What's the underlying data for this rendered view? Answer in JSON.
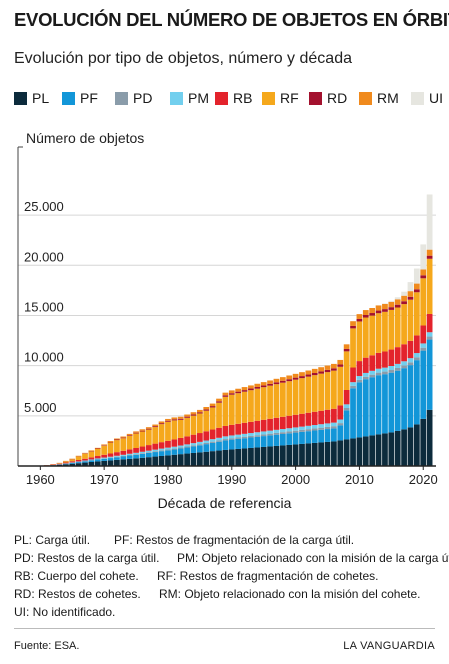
{
  "title": "EVOLUCIÓN DEL NÚMERO DE OBJETOS EN ÓRBITA",
  "subtitle": "Evolución por tipo de objetos, número y década",
  "source": "Fuente: ESA.",
  "brand": "LA VANGUARDIA",
  "notes": [
    [
      {
        "code": "PL:",
        "text": "Carga útil."
      },
      {
        "code": "PF:",
        "text": "Restos de fragmentación de la carga útil."
      }
    ],
    [
      {
        "code": "PD:",
        "text": "Restos de la carga útil."
      },
      {
        "code": "PM:",
        "text": "Objeto relacionado con la misión de la carga útil."
      }
    ],
    [
      {
        "code": "RB:",
        "text": "Cuerpo del cohete."
      },
      {
        "code": "RF:",
        "text": "Restos de fragmentación de cohetes."
      }
    ],
    [
      {
        "code": "RD:",
        "text": "Restos de cohetes."
      },
      {
        "code": "RM:",
        "text": "Objeto relacionado con la misión del cohete."
      }
    ],
    [
      {
        "code": "UI:",
        "text": "No identificado."
      }
    ]
  ],
  "chart_data": {
    "type": "bar",
    "stacked": true,
    "title": "",
    "ylabel": "Número de objetos",
    "xlabel": "Década de referencia",
    "x": [
      1958,
      1959,
      1960,
      1961,
      1962,
      1963,
      1964,
      1965,
      1966,
      1967,
      1968,
      1969,
      1970,
      1971,
      1972,
      1973,
      1974,
      1975,
      1976,
      1977,
      1978,
      1979,
      1980,
      1981,
      1982,
      1983,
      1984,
      1985,
      1986,
      1987,
      1988,
      1989,
      1990,
      1991,
      1992,
      1993,
      1994,
      1995,
      1996,
      1997,
      1998,
      1999,
      2000,
      2001,
      2002,
      2003,
      2004,
      2005,
      2006,
      2007,
      2008,
      2009,
      2010,
      2011,
      2012,
      2013,
      2014,
      2015,
      2016,
      2017,
      2018,
      2019,
      2020,
      2021
    ],
    "xticks": [
      1960,
      1970,
      1980,
      1990,
      2000,
      2010,
      2020
    ],
    "xlim": [
      1956.5,
      2022
    ],
    "ylim": [
      0,
      29000
    ],
    "yticks": [
      5000,
      10000,
      15000,
      20000,
      25000
    ],
    "ytick_labels": [
      "5.000",
      "10.000",
      "15.000",
      "20.000",
      "25.000"
    ],
    "legend_position": "top",
    "series": [
      {
        "name": "PL",
        "color": "#0c2b3c",
        "values": [
          5,
          10,
          20,
          50,
          80,
          120,
          170,
          220,
          280,
          340,
          400,
          460,
          510,
          560,
          610,
          660,
          710,
          760,
          820,
          880,
          940,
          1000,
          1060,
          1120,
          1180,
          1240,
          1300,
          1360,
          1420,
          1480,
          1540,
          1600,
          1650,
          1700,
          1750,
          1800,
          1850,
          1900,
          1950,
          2000,
          2050,
          2100,
          2150,
          2200,
          2250,
          2300,
          2350,
          2400,
          2450,
          2550,
          2650,
          2750,
          2850,
          2950,
          3050,
          3150,
          3250,
          3350,
          3500,
          3650,
          3850,
          4150,
          4700,
          5600
        ]
      },
      {
        "name": "PF",
        "color": "#1296d8",
        "values": [
          0,
          0,
          0,
          0,
          10,
          30,
          60,
          90,
          110,
          130,
          160,
          190,
          210,
          230,
          260,
          290,
          330,
          360,
          390,
          420,
          450,
          480,
          500,
          520,
          560,
          600,
          650,
          700,
          760,
          820,
          880,
          950,
          980,
          1000,
          1020,
          1040,
          1060,
          1080,
          1100,
          1120,
          1140,
          1160,
          1180,
          1200,
          1220,
          1240,
          1260,
          1280,
          1300,
          1500,
          2900,
          5000,
          5500,
          5700,
          5800,
          5900,
          5900,
          5950,
          6000,
          6100,
          6200,
          6400,
          6800,
          7000
        ]
      },
      {
        "name": "PD",
        "color": "#8a9caa",
        "values": [
          0,
          0,
          0,
          0,
          5,
          5,
          10,
          15,
          20,
          25,
          30,
          35,
          40,
          45,
          50,
          55,
          60,
          65,
          70,
          75,
          80,
          85,
          90,
          95,
          100,
          105,
          110,
          115,
          120,
          125,
          130,
          135,
          140,
          145,
          150,
          155,
          160,
          165,
          170,
          175,
          180,
          185,
          190,
          195,
          200,
          205,
          210,
          215,
          220,
          225,
          230,
          235,
          240,
          245,
          250,
          255,
          260,
          265,
          270,
          275,
          280,
          285,
          290,
          300
        ]
      },
      {
        "name": "PM",
        "color": "#72cfee",
        "values": [
          0,
          0,
          0,
          0,
          5,
          10,
          20,
          30,
          40,
          50,
          60,
          70,
          80,
          90,
          100,
          110,
          120,
          130,
          140,
          150,
          160,
          170,
          180,
          190,
          200,
          210,
          220,
          230,
          240,
          250,
          260,
          270,
          275,
          280,
          285,
          290,
          295,
          300,
          305,
          310,
          315,
          320,
          325,
          330,
          335,
          340,
          345,
          350,
          355,
          360,
          365,
          370,
          375,
          380,
          385,
          390,
          395,
          400,
          405,
          410,
          415,
          420,
          425,
          430
        ]
      },
      {
        "name": "RB",
        "color": "#e3232c",
        "values": [
          0,
          0,
          10,
          20,
          40,
          60,
          90,
          120,
          150,
          180,
          210,
          240,
          280,
          320,
          360,
          400,
          440,
          480,
          520,
          560,
          600,
          640,
          680,
          720,
          760,
          800,
          840,
          880,
          920,
          960,
          1000,
          1040,
          1060,
          1080,
          1100,
          1120,
          1140,
          1160,
          1180,
          1200,
          1220,
          1240,
          1260,
          1280,
          1300,
          1320,
          1340,
          1360,
          1380,
          1400,
          1430,
          1460,
          1490,
          1520,
          1550,
          1580,
          1610,
          1640,
          1670,
          1700,
          1730,
          1760,
          1790,
          1820
        ]
      },
      {
        "name": "RF",
        "color": "#f5a81c",
        "values": [
          0,
          0,
          0,
          10,
          30,
          60,
          120,
          200,
          350,
          500,
          600,
          700,
          900,
          1100,
          1200,
          1250,
          1350,
          1450,
          1500,
          1550,
          1650,
          1800,
          1900,
          1900,
          1800,
          1850,
          1900,
          1950,
          2050,
          2200,
          2500,
          2900,
          3000,
          3050,
          3100,
          3150,
          3200,
          3250,
          3300,
          3350,
          3400,
          3450,
          3500,
          3550,
          3600,
          3650,
          3700,
          3750,
          3800,
          3850,
          3850,
          3900,
          3950,
          4000,
          3950,
          3950,
          3950,
          3950,
          3950,
          4000,
          4100,
          4300,
          4700,
          5500
        ]
      },
      {
        "name": "RD",
        "color": "#a3112e",
        "values": [
          0,
          0,
          0,
          5,
          10,
          15,
          20,
          25,
          30,
          35,
          40,
          45,
          50,
          55,
          60,
          65,
          70,
          75,
          80,
          85,
          90,
          95,
          100,
          105,
          110,
          115,
          120,
          125,
          130,
          135,
          140,
          145,
          150,
          155,
          160,
          165,
          170,
          175,
          180,
          185,
          190,
          195,
          200,
          205,
          210,
          215,
          220,
          225,
          230,
          235,
          240,
          245,
          250,
          255,
          260,
          265,
          270,
          275,
          280,
          285,
          290,
          295,
          300,
          310
        ]
      },
      {
        "name": "RM",
        "color": "#f08a1d",
        "values": [
          0,
          0,
          0,
          5,
          10,
          15,
          20,
          30,
          40,
          50,
          60,
          70,
          80,
          90,
          100,
          110,
          120,
          130,
          140,
          150,
          160,
          170,
          180,
          190,
          200,
          210,
          220,
          230,
          240,
          250,
          260,
          270,
          280,
          290,
          300,
          310,
          320,
          330,
          340,
          350,
          360,
          370,
          380,
          390,
          400,
          410,
          420,
          430,
          440,
          450,
          460,
          470,
          480,
          490,
          500,
          510,
          520,
          530,
          540,
          550,
          560,
          570,
          580,
          600
        ]
      },
      {
        "name": "UI",
        "color": "#e6e6e0",
        "values": [
          0,
          0,
          0,
          0,
          0,
          0,
          0,
          0,
          0,
          0,
          0,
          0,
          0,
          0,
          0,
          0,
          0,
          0,
          0,
          0,
          0,
          0,
          0,
          0,
          0,
          0,
          0,
          0,
          0,
          0,
          0,
          0,
          0,
          0,
          0,
          0,
          0,
          0,
          0,
          0,
          0,
          0,
          0,
          0,
          0,
          0,
          0,
          0,
          0,
          0,
          0,
          0,
          0,
          0,
          0,
          20,
          50,
          100,
          200,
          400,
          900,
          1500,
          2500,
          5500
        ]
      }
    ]
  }
}
